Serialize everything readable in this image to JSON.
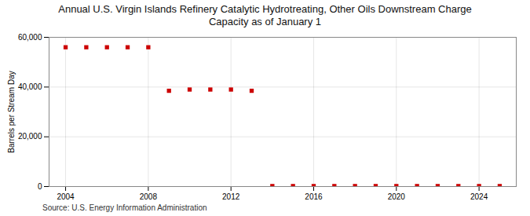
{
  "chart_data": {
    "type": "scatter",
    "title": "Annual U.S. Virgin Islands Refinery Catalytic Hydrotreating, Other Oils Downstream Charge\nCapacity as of January 1",
    "y_label": "Barrels per Stream Day",
    "annotations": [
      "Source: U.S. Energy Information Administration"
    ],
    "x": [
      2004,
      2005,
      2006,
      2007,
      2008,
      2009,
      2010,
      2011,
      2012,
      2013,
      2014,
      2015,
      2016,
      2017,
      2018,
      2019,
      2020,
      2021,
      2022,
      2023,
      2024,
      2025
    ],
    "values": [
      56000,
      56000,
      56000,
      56000,
      56000,
      38500,
      39000,
      39000,
      39000,
      38500,
      200,
      200,
      200,
      200,
      200,
      200,
      200,
      200,
      200,
      200,
      200,
      200
    ],
    "color": "#cc0000",
    "marker": "square",
    "xlim": [
      2003.2,
      2025.8
    ],
    "xticks": [
      2004,
      2008,
      2012,
      2016,
      2020,
      2024
    ],
    "ylim": [
      0,
      60000
    ],
    "yticks": [
      0,
      {
        "value": 20000,
        "label": "20,000"
      },
      {
        "value": 40000,
        "label": "40,000"
      },
      {
        "value": 60000,
        "label": "60,000"
      }
    ],
    "grid": true
  }
}
